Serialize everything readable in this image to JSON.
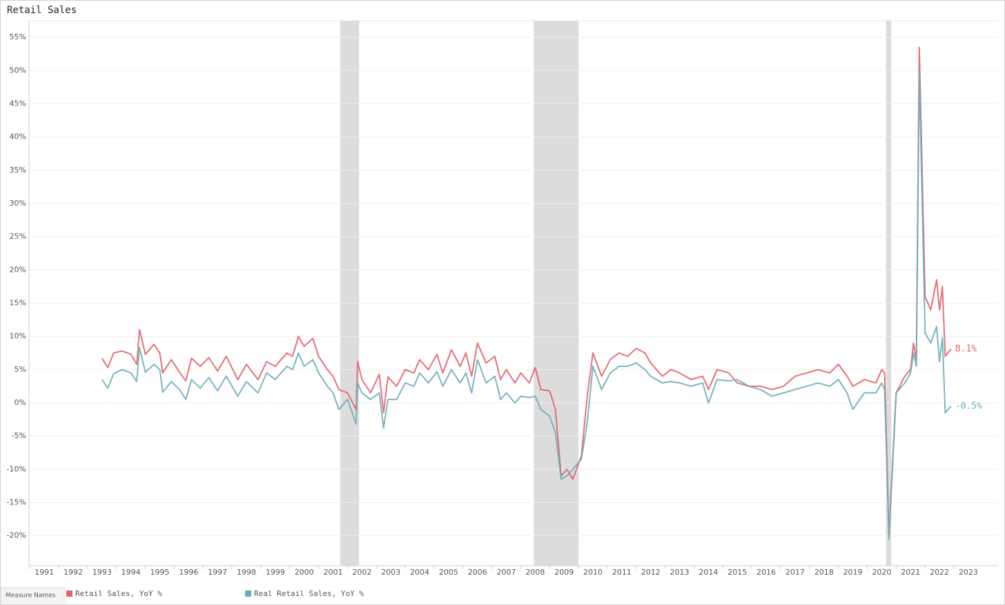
{
  "chart_data": {
    "type": "line",
    "title": "Retail Sales",
    "legend_title": "Measure Names",
    "legend": "bottom-left",
    "grid": true,
    "xlim": [
      1990.47,
      2024.03
    ],
    "xticks": [
      1991,
      1992,
      1993,
      1994,
      1995,
      1996,
      1997,
      1998,
      1999,
      2000,
      2001,
      2002,
      2003,
      2004,
      2005,
      2006,
      2007,
      2008,
      2009,
      2010,
      2011,
      2012,
      2013,
      2014,
      2015,
      2016,
      2017,
      2018,
      2019,
      2020,
      2021,
      2022,
      2023
    ],
    "ylim": [
      -24.5,
      57.5
    ],
    "yticks": [
      {
        "value": -20,
        "label": "-20%"
      },
      {
        "value": -15,
        "label": "-15%"
      },
      {
        "value": -10,
        "label": "-10%"
      },
      {
        "value": -5,
        "label": "-5%"
      },
      {
        "value": 0,
        "label": "0%"
      },
      {
        "value": 5,
        "label": "5%"
      },
      {
        "value": 10,
        "label": "10%"
      },
      {
        "value": 15,
        "label": "15%"
      },
      {
        "value": 20,
        "label": "20%"
      },
      {
        "value": 25,
        "label": "25%"
      },
      {
        "value": 30,
        "label": "30%"
      },
      {
        "value": 35,
        "label": "35%"
      },
      {
        "value": 40,
        "label": "40%"
      },
      {
        "value": 45,
        "label": "45%"
      },
      {
        "value": 50,
        "label": "50%"
      },
      {
        "value": 55,
        "label": "55%"
      }
    ],
    "shaded_ranges": [
      [
        2001.25,
        2001.9
      ],
      [
        2007.95,
        2009.5
      ],
      [
        2020.15,
        2020.33
      ]
    ],
    "shade_color": "#dcdcdc",
    "x": [
      1993.0,
      1993.2,
      1993.4,
      1993.7,
      1994.0,
      1994.2,
      1994.3,
      1994.5,
      1994.8,
      1995.0,
      1995.1,
      1995.4,
      1995.7,
      1995.9,
      1996.1,
      1996.4,
      1996.7,
      1997.0,
      1997.3,
      1997.7,
      1998.0,
      1998.4,
      1998.7,
      1999.0,
      1999.4,
      1999.6,
      1999.8,
      2000.0,
      2000.3,
      2000.5,
      2000.8,
      2001.0,
      2001.2,
      2001.5,
      2001.8,
      2001.85,
      2002.0,
      2002.3,
      2002.6,
      2002.75,
      2002.9,
      2003.2,
      2003.5,
      2003.8,
      2004.0,
      2004.3,
      2004.6,
      2004.8,
      2005.1,
      2005.4,
      2005.6,
      2005.8,
      2006.0,
      2006.3,
      2006.6,
      2006.8,
      2007.0,
      2007.3,
      2007.5,
      2007.8,
      2008.0,
      2008.2,
      2008.5,
      2008.7,
      2008.9,
      2009.1,
      2009.3,
      2009.6,
      2009.8,
      2010.0,
      2010.3,
      2010.6,
      2010.9,
      2011.2,
      2011.5,
      2011.8,
      2012.0,
      2012.4,
      2012.7,
      2013.0,
      2013.4,
      2013.8,
      2014.0,
      2014.3,
      2014.7,
      2015.0,
      2015.4,
      2015.8,
      2016.2,
      2016.6,
      2017.0,
      2017.4,
      2017.8,
      2018.2,
      2018.5,
      2018.8,
      2019.0,
      2019.4,
      2019.8,
      2020.0,
      2020.1,
      2020.25,
      2020.5,
      2020.8,
      2021.0,
      2021.1,
      2021.2,
      2021.3,
      2021.5,
      2021.7,
      2021.9,
      2022.0,
      2022.1,
      2022.2,
      2022.4
    ],
    "series": [
      {
        "name": "Retail Sales, YoY %",
        "color": "#e3616b",
        "values": [
          6.7,
          5.3,
          7.5,
          7.8,
          7.3,
          5.8,
          11.0,
          7.3,
          8.8,
          7.5,
          4.5,
          6.5,
          4.5,
          3.3,
          6.7,
          5.5,
          6.8,
          4.8,
          7.0,
          3.5,
          5.8,
          3.5,
          6.2,
          5.5,
          7.5,
          7.0,
          10.0,
          8.5,
          9.7,
          7.0,
          5.0,
          4.0,
          2.0,
          1.5,
          -1.0,
          6.2,
          3.5,
          1.5,
          4.3,
          -1.5,
          3.9,
          2.5,
          5.0,
          4.5,
          6.5,
          5.0,
          7.3,
          4.5,
          8.0,
          5.5,
          7.5,
          4.0,
          9.0,
          6.0,
          7.0,
          3.5,
          5.0,
          3.0,
          4.5,
          3.0,
          5.3,
          2.0,
          1.8,
          -1.0,
          -11.0,
          -10.0,
          -11.5,
          -8.0,
          1.0,
          7.5,
          4.0,
          6.5,
          7.5,
          7.0,
          8.2,
          7.5,
          6.0,
          4.0,
          5.0,
          4.5,
          3.5,
          4.0,
          2.0,
          5.0,
          4.5,
          3.0,
          2.5,
          2.5,
          2.0,
          2.5,
          4.0,
          4.5,
          5.0,
          4.5,
          5.8,
          4.0,
          2.5,
          3.5,
          3.0,
          5.0,
          4.5,
          -20.0,
          1.5,
          4.0,
          5.0,
          9.0,
          6.5,
          53.5,
          16.0,
          14.0,
          18.5,
          14.0,
          17.5,
          7.0,
          8.1
        ],
        "value_labels": [
          null,
          null,
          null,
          null,
          null,
          null,
          null,
          null,
          null,
          null,
          null,
          null,
          null,
          null,
          null,
          null,
          null,
          null,
          null,
          null,
          null,
          null,
          null,
          null,
          null,
          null,
          null,
          null,
          null,
          null,
          null,
          null,
          null,
          null,
          null,
          null,
          null,
          null,
          null,
          null,
          null,
          null,
          null,
          null,
          null,
          null,
          null,
          null,
          null,
          null,
          null,
          null,
          null,
          null,
          null,
          null,
          null,
          null,
          null,
          null,
          null,
          null,
          null,
          null,
          null,
          null,
          null,
          null,
          null,
          null,
          null,
          null,
          null,
          null,
          null,
          null,
          null,
          null,
          null,
          null,
          null,
          null,
          null,
          null,
          null,
          null,
          null,
          null,
          null,
          null,
          null,
          null,
          null,
          null,
          null,
          null,
          null,
          null,
          null,
          null,
          null,
          null,
          null,
          null,
          null,
          null,
          null,
          null,
          null,
          null,
          null,
          null,
          null,
          null,
          "8.1%"
        ]
      },
      {
        "name": "Real Retail Sales, YoY %",
        "color": "#6aaeb8",
        "values": [
          3.5,
          2.2,
          4.4,
          5.0,
          4.5,
          3.2,
          8.3,
          4.6,
          5.8,
          5.0,
          1.6,
          3.2,
          1.9,
          0.5,
          3.5,
          2.2,
          3.8,
          1.8,
          4.0,
          1.0,
          3.2,
          1.5,
          4.5,
          3.5,
          5.5,
          5.0,
          7.5,
          5.5,
          6.5,
          4.5,
          2.5,
          1.5,
          -1.0,
          0.5,
          -3.2,
          3.0,
          1.5,
          0.5,
          1.5,
          -3.8,
          0.5,
          0.5,
          3.0,
          2.5,
          4.5,
          3.0,
          4.7,
          2.5,
          5.0,
          3.0,
          4.5,
          1.5,
          6.5,
          3.0,
          4.0,
          0.5,
          1.5,
          0.0,
          1.0,
          0.8,
          1.0,
          -1.0,
          -2.0,
          -4.5,
          -11.5,
          -11.0,
          -10.0,
          -8.5,
          -3.0,
          5.5,
          2.0,
          4.5,
          5.5,
          5.5,
          6.0,
          5.0,
          4.0,
          3.0,
          3.2,
          3.0,
          2.5,
          3.0,
          0.0,
          3.5,
          3.3,
          3.5,
          2.5,
          2.0,
          1.0,
          1.5,
          2.0,
          2.5,
          3.0,
          2.5,
          3.5,
          1.5,
          -1.0,
          1.5,
          1.5,
          3.0,
          2.0,
          -20.5,
          1.5,
          3.0,
          4.5,
          7.5,
          5.5,
          50.0,
          10.5,
          9.0,
          11.5,
          6.2,
          9.8,
          -1.5,
          -0.5
        ],
        "value_labels": [
          null,
          null,
          null,
          null,
          null,
          null,
          null,
          null,
          null,
          null,
          null,
          null,
          null,
          null,
          null,
          null,
          null,
          null,
          null,
          null,
          null,
          null,
          null,
          null,
          null,
          null,
          null,
          null,
          null,
          null,
          null,
          null,
          null,
          null,
          null,
          null,
          null,
          null,
          null,
          null,
          null,
          null,
          null,
          null,
          null,
          null,
          null,
          null,
          null,
          null,
          null,
          null,
          null,
          null,
          null,
          null,
          null,
          null,
          null,
          null,
          null,
          null,
          null,
          null,
          null,
          null,
          null,
          null,
          null,
          null,
          null,
          null,
          null,
          null,
          null,
          null,
          null,
          null,
          null,
          null,
          null,
          null,
          null,
          null,
          null,
          null,
          null,
          null,
          null,
          null,
          null,
          null,
          null,
          null,
          null,
          null,
          null,
          null,
          null,
          null,
          null,
          null,
          null,
          null,
          null,
          null,
          null,
          null,
          null,
          null,
          null,
          null,
          null,
          null,
          "-0.5%"
        ]
      }
    ]
  }
}
